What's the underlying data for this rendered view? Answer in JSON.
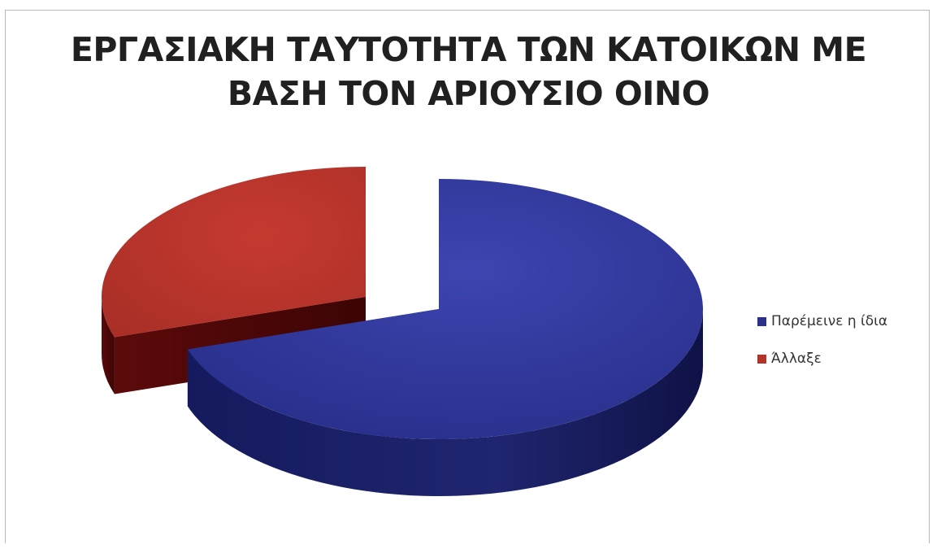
{
  "chart_data": {
    "type": "pie",
    "style": "3d-exploded",
    "title_lines": [
      "ΕΡΓΑΣΙΑΚΗ ΤΑΥΤΟΤΗΤΑ ΤΩΝ ΚΑΤΟΙΚΩΝ ΜΕ",
      "ΒΑΣΗ ΤΟΝ ΑΡΙΟΥΣΙΟ ΟΙΝΟ"
    ],
    "categories": [
      "Παρέμεινε η ίδια",
      "Άλλαξε"
    ],
    "values": [
      70,
      30
    ],
    "colors": [
      "#2b3189",
      "#b3322a"
    ],
    "legend_position": "right"
  }
}
